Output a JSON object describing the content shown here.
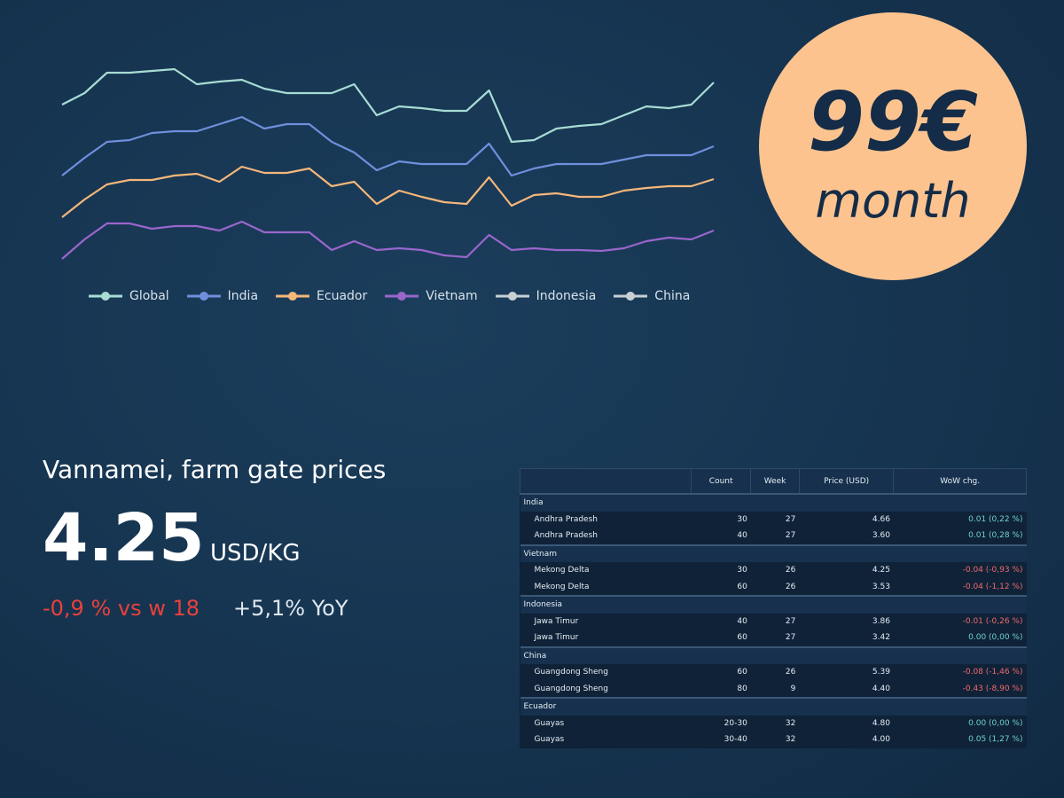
{
  "chart_data": {
    "type": "line",
    "ylim": [
      0,
      260
    ],
    "legend": "bottom",
    "series": [
      {
        "name": "Global",
        "color": "#a8dcd4",
        "values": [
          202,
          215,
          238,
          238,
          240,
          242,
          225,
          228,
          230,
          220,
          215,
          215,
          215,
          225,
          190,
          200,
          198,
          195,
          195,
          218,
          160,
          162,
          175,
          178,
          180,
          190,
          200,
          198,
          202,
          227
        ]
      },
      {
        "name": "India",
        "color": "#6f8fdc",
        "values": [
          122,
          142,
          160,
          162,
          170,
          172,
          172,
          180,
          188,
          175,
          180,
          180,
          160,
          148,
          128,
          138,
          135,
          135,
          135,
          158,
          122,
          130,
          135,
          135,
          135,
          140,
          145,
          145,
          145,
          155
        ]
      },
      {
        "name": "Ecuador",
        "color": "#f5b77a",
        "values": [
          75,
          95,
          112,
          117,
          117,
          122,
          124,
          115,
          132,
          125,
          125,
          130,
          110,
          115,
          90,
          105,
          98,
          92,
          90,
          120,
          88,
          100,
          102,
          98,
          98,
          105,
          108,
          110,
          110,
          118
        ]
      },
      {
        "name": "Vietnam",
        "color": "#9a66cc",
        "values": [
          28,
          50,
          68,
          68,
          62,
          65,
          65,
          60,
          70,
          58,
          58,
          58,
          38,
          48,
          38,
          40,
          38,
          32,
          30,
          55,
          38,
          40,
          38,
          38,
          37,
          40,
          48,
          52,
          50,
          60
        ]
      },
      {
        "name": "Indonesia",
        "color": "#c8d0d4"
      },
      {
        "name": "China",
        "color": "#c8d0d4"
      }
    ]
  },
  "price_badge": {
    "price": "99€",
    "period": "month"
  },
  "headline": {
    "title": "Vannamei, farm gate prices",
    "price": "4.25",
    "unit": "USD/KG",
    "weekly_change": "-0,9 % vs w 18",
    "yearly_change": "+5,1% YoY"
  },
  "table": {
    "header": [
      "Count",
      "Week",
      "Price (USD)",
      "WoW chg."
    ],
    "groups": [
      {
        "name": "India",
        "rows": [
          [
            "Andhra Pradesh",
            "30",
            "27",
            "4.66",
            "0.01 (0,22 %)"
          ],
          [
            "Andhra Pradesh",
            "40",
            "27",
            "3.60",
            "0.01 (0,28 %)"
          ]
        ]
      },
      {
        "name": "Vietnam",
        "rows": [
          [
            "Mekong Delta",
            "30",
            "26",
            "4.25",
            "-0.04 (-0,93 %)"
          ],
          [
            "Mekong Delta",
            "60",
            "26",
            "3.53",
            "-0.04 (-1,12 %)"
          ]
        ]
      },
      {
        "name": "Indonesia",
        "rows": [
          [
            "Jawa Timur",
            "40",
            "27",
            "3.86",
            "-0.01 (-0,26 %)"
          ],
          [
            "Jawa Timur",
            "60",
            "27",
            "3.42",
            "0.00 (0,00 %)"
          ]
        ]
      },
      {
        "name": "China",
        "rows": [
          [
            "Guangdong Sheng",
            "60",
            "26",
            "5.39",
            "-0.08 (-1,46 %)"
          ],
          [
            "Guangdong Sheng",
            "80",
            "9",
            "4.40",
            "-0.43 (-8,90 %)"
          ]
        ]
      },
      {
        "name": "Ecuador",
        "rows": [
          [
            "Guayas",
            "20-30",
            "32",
            "4.80",
            "0.00 (0,00 %)"
          ],
          [
            "Guayas",
            "30-40",
            "32",
            "4.00",
            "0.05 (1,27 %)"
          ]
        ]
      }
    ]
  }
}
